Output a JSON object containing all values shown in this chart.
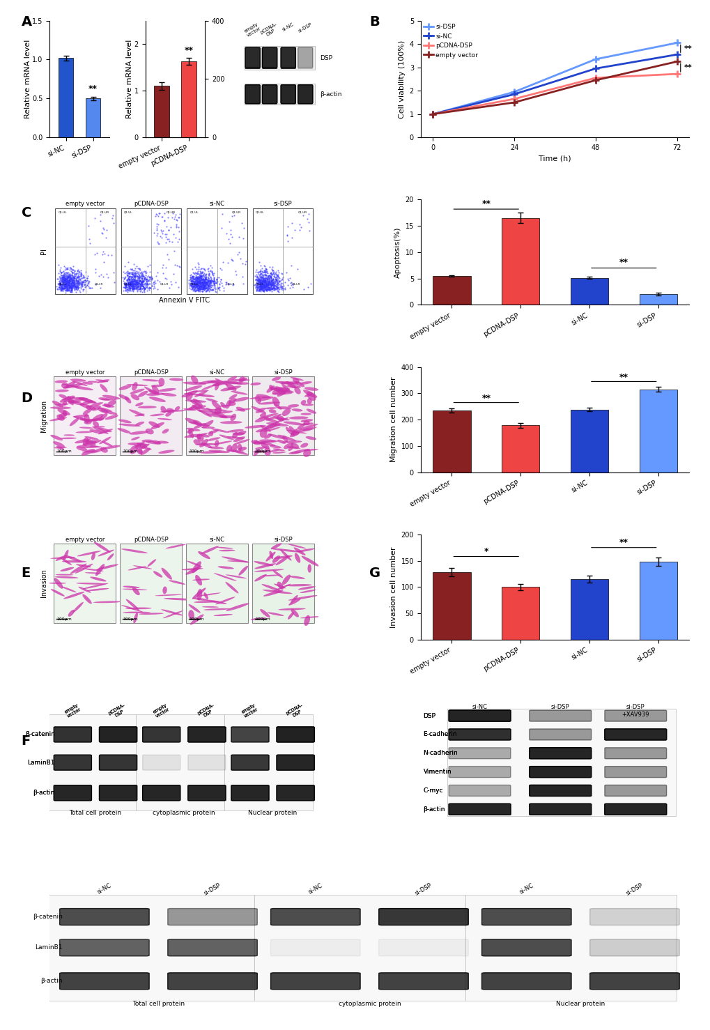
{
  "panel_A_bar1": {
    "categories": [
      "si-NC",
      "si-DSP"
    ],
    "values": [
      1.02,
      0.5
    ],
    "errors": [
      0.03,
      0.02
    ],
    "colors": [
      "#2255cc",
      "#5588ee"
    ],
    "ylabel": "Relative mRNA level",
    "ylim": [
      0,
      1.5
    ],
    "yticks": [
      0.0,
      0.5,
      1.0,
      1.5
    ]
  },
  "panel_A_bar2": {
    "categories": [
      "empty vector",
      "pCDNA-DSP"
    ],
    "values": [
      1.1,
      260
    ],
    "errors": [
      0.08,
      12
    ],
    "colors": [
      "#882222",
      "#ee4444"
    ],
    "ylabel": "Relative mRNA level",
    "ylim_left": [
      0,
      2.5
    ],
    "yticks_left": [
      0,
      1,
      2
    ],
    "ylim_right": [
      0,
      400
    ],
    "yticks_right": [
      0,
      200,
      400
    ]
  },
  "wb_A": {
    "lanes": [
      "empty\nvector",
      "pCDNA-\nDSP",
      "si-NC",
      "si-DSP"
    ],
    "proteins": [
      "DSP",
      "β-actin"
    ],
    "dsp_alphas": [
      0.8,
      0.82,
      0.78,
      0.2
    ],
    "actin_alphas": [
      0.85,
      0.85,
      0.85,
      0.85
    ]
  },
  "panel_B_line": {
    "x": [
      0,
      24,
      48,
      72
    ],
    "series": {
      "si-DSP": {
        "y": [
          1.0,
          1.95,
          3.35,
          4.05
        ],
        "color": "#6699ff",
        "marker": "+",
        "lw": 2.0
      },
      "si-NC": {
        "y": [
          1.0,
          1.85,
          2.95,
          3.55
        ],
        "color": "#2244cc",
        "marker": "+",
        "lw": 2.0
      },
      "pCDNA-DSP": {
        "y": [
          1.0,
          1.65,
          2.55,
          2.72
        ],
        "color": "#ff7777",
        "marker": "+",
        "lw": 2.0
      },
      "empty vector": {
        "y": [
          1.0,
          1.5,
          2.45,
          3.25
        ],
        "color": "#882222",
        "marker": "+",
        "lw": 2.0
      }
    },
    "xlabel": "Time (h)",
    "ylabel": "Cell viability (100%)",
    "ylim": [
      0,
      5
    ],
    "yticks": [
      0,
      1,
      2,
      3,
      4,
      5
    ],
    "xticks": [
      0,
      24,
      48,
      72
    ]
  },
  "panel_C_apop_bar": {
    "categories": [
      "empty vector",
      "pCDNA-DSP",
      "si-NC",
      "si-DSP"
    ],
    "values": [
      5.5,
      16.5,
      5.1,
      2.0
    ],
    "errors": [
      0.18,
      1.0,
      0.2,
      0.25
    ],
    "colors": [
      "#882222",
      "#ee4444",
      "#2244cc",
      "#6699ff"
    ],
    "ylabel": "Apoptosis(%)",
    "ylim": [
      0,
      20
    ],
    "yticks": [
      0,
      5,
      10,
      15,
      20
    ]
  },
  "panel_D_mig_bar": {
    "categories": [
      "empty vector",
      "pCDNA-DSP",
      "si-NC",
      "si-DSP"
    ],
    "values": [
      235,
      178,
      238,
      315
    ],
    "errors": [
      8,
      10,
      7,
      9
    ],
    "colors": [
      "#882222",
      "#ee4444",
      "#2244cc",
      "#6699ff"
    ],
    "ylabel": "Migration cell number",
    "ylim": [
      0,
      400
    ],
    "yticks": [
      0,
      100,
      200,
      300,
      400
    ]
  },
  "panel_D_inv_bar": {
    "categories": [
      "empty vector",
      "pCDNA-DSP",
      "si-NC",
      "si-DSP"
    ],
    "values": [
      128,
      100,
      115,
      148
    ],
    "errors": [
      8,
      6,
      6,
      8
    ],
    "colors": [
      "#882222",
      "#ee4444",
      "#2244cc",
      "#6699ff"
    ],
    "ylabel": "Invasion cell number",
    "ylim": [
      0,
      200
    ],
    "yticks": [
      0,
      50,
      100,
      150,
      200
    ]
  },
  "panel_label_fontsize": 14,
  "axis_fontsize": 8,
  "tick_fontsize": 7
}
